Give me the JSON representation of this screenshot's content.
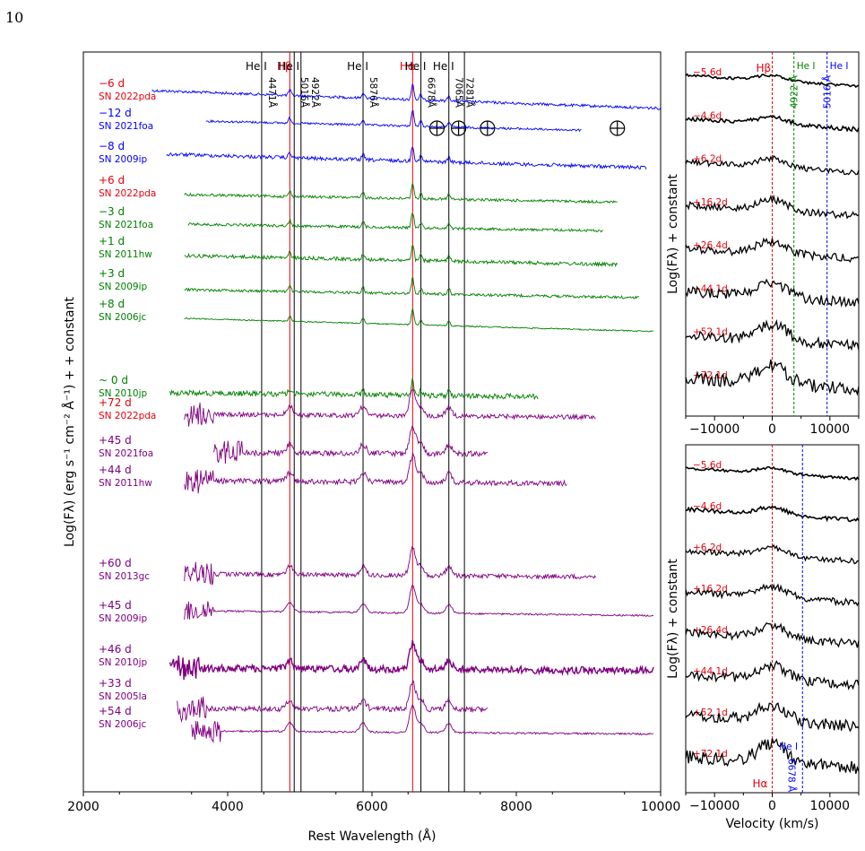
{
  "page_number": "10",
  "chart_data": [
    {
      "id": "main",
      "type": "line",
      "xlabel": "Rest Wavelength (Å)",
      "ylabel": "Log(Fλ) (erg s⁻¹ cm⁻² Å⁻¹) + + constant",
      "xlim": [
        2000,
        10000
      ],
      "xticks": [
        "2000",
        "4000",
        "6000",
        "8000",
        "10000"
      ],
      "line_markers": [
        {
          "name": "He I",
          "sub": "4471Å",
          "x": 4471,
          "color": "#000000"
        },
        {
          "name": "Hβ",
          "sub": "",
          "x": 4861,
          "color": "#e8000b"
        },
        {
          "name": "He I",
          "sub": "5016Å 4922Å",
          "x": 4922,
          "color": "#000000"
        },
        {
          "name": "",
          "sub": "",
          "x": 5016,
          "color": "#000000"
        },
        {
          "name": "He I",
          "sub": "5876Å",
          "x": 5876,
          "color": "#000000"
        },
        {
          "name": "Hα",
          "sub": "",
          "x": 6563,
          "color": "#e8000b"
        },
        {
          "name": "He I",
          "sub": "6678Å",
          "x": 6678,
          "color": "#000000"
        },
        {
          "name": "He I",
          "sub": "7065Å 7281Å",
          "x": 7065,
          "color": "#000000"
        },
        {
          "name": "",
          "sub": "",
          "x": 7281,
          "color": "#000000"
        }
      ],
      "telluric_marks": [
        6900,
        7200,
        7600,
        9400
      ],
      "series": [
        {
          "epoch": "−6 d",
          "name": "SN 2022pda",
          "label_color": "#e8000b",
          "color": "#0000ff",
          "x_range": [
            2950,
            10000
          ],
          "offset": 0
        },
        {
          "epoch": "−12 d",
          "name": "SN 2021foa",
          "label_color": "#0000ff",
          "color": "#0000ff",
          "x_range": [
            3700,
            8900
          ],
          "offset": 1
        },
        {
          "epoch": "−8 d",
          "name": "SN 2009ip",
          "label_color": "#0000ff",
          "color": "#0000ff",
          "x_range": [
            3150,
            9800
          ],
          "offset": 2
        },
        {
          "epoch": "+6 d",
          "name": "SN 2022pda",
          "label_color": "#e8000b",
          "color": "#008000",
          "x_range": [
            3400,
            9400
          ],
          "offset": 3
        },
        {
          "epoch": "−3 d",
          "name": "SN 2021foa",
          "label_color": "#008000",
          "color": "#008000",
          "x_range": [
            3450,
            9200
          ],
          "offset": 4
        },
        {
          "epoch": "+1 d",
          "name": "SN 2011hw",
          "label_color": "#008000",
          "color": "#008000",
          "x_range": [
            3400,
            9400
          ],
          "offset": 5
        },
        {
          "epoch": "+3 d",
          "name": "SN 2009ip",
          "label_color": "#008000",
          "color": "#008000",
          "x_range": [
            3400,
            9700
          ],
          "offset": 6
        },
        {
          "epoch": "+8 d",
          "name": "SN 2006jc",
          "label_color": "#008000",
          "color": "#008000",
          "x_range": [
            3400,
            9900
          ],
          "offset": 7
        },
        {
          "epoch": "~ 0 d",
          "name": "SN 2010jp",
          "label_color": "#008000",
          "color": "#008000",
          "x_range": [
            3200,
            8300
          ],
          "offset": 8
        },
        {
          "epoch": "+72 d",
          "name": "SN 2022pda",
          "label_color": "#e8000b",
          "color": "#800080",
          "x_range": [
            3400,
            9100
          ],
          "offset": 9
        },
        {
          "epoch": "+45 d",
          "name": "SN 2021foa",
          "label_color": "#800080",
          "color": "#800080",
          "x_range": [
            3800,
            7600
          ],
          "offset": 10
        },
        {
          "epoch": "+44 d",
          "name": "SN 2011hw",
          "label_color": "#800080",
          "color": "#800080",
          "x_range": [
            3400,
            8700
          ],
          "offset": 11
        },
        {
          "epoch": "+60 d",
          "name": "SN 2013gc",
          "label_color": "#800080",
          "color": "#800080",
          "x_range": [
            3400,
            9100
          ],
          "offset": 12
        },
        {
          "epoch": "+45 d",
          "name": "SN 2009ip",
          "label_color": "#800080",
          "color": "#800080",
          "x_range": [
            3400,
            9900
          ],
          "offset": 13
        },
        {
          "epoch": "+46 d",
          "name": "SN 2010jp",
          "label_color": "#800080",
          "color": "#800080",
          "x_range": [
            3200,
            9900
          ],
          "offset": 14
        },
        {
          "epoch": "+33 d",
          "name": "SN 2005la",
          "label_color": "#800080",
          "color": "#800080",
          "x_range": [
            3300,
            7600
          ],
          "offset": 15
        },
        {
          "epoch": "+54 d",
          "name": "SN 2006jc",
          "label_color": "#800080",
          "color": "#800080",
          "x_range": [
            3500,
            9900
          ],
          "offset": 16
        }
      ]
    },
    {
      "id": "hbeta",
      "type": "line",
      "xlabel": "",
      "ylabel": "Log(Fλ) + constant",
      "xlim": [
        -15000,
        15000
      ],
      "xticks": [
        "−10000",
        "0",
        "10000"
      ],
      "line_markers": [
        {
          "name": "Hβ",
          "x": 0,
          "color": "#e8000b"
        },
        {
          "name": "He I",
          "sub": "4922 Å",
          "x": 3763,
          "color": "#008000"
        },
        {
          "name": "He I",
          "sub": "5016 Å",
          "x": 9510,
          "color": "#0000ff"
        }
      ],
      "series": [
        {
          "epoch": "−5.6d"
        },
        {
          "epoch": "−4.6d"
        },
        {
          "epoch": "+6.2d"
        },
        {
          "epoch": "+16.2d"
        },
        {
          "epoch": "+26.4d"
        },
        {
          "epoch": "+44.1d"
        },
        {
          "epoch": "+52.1d"
        },
        {
          "epoch": "+72.1d"
        }
      ]
    },
    {
      "id": "halpha",
      "type": "line",
      "xlabel": "Velocity (km/s)",
      "ylabel": "Log(Fλ) + constant",
      "xlim": [
        -15000,
        15000
      ],
      "xticks": [
        "−10000",
        "0",
        "10000"
      ],
      "line_markers": [
        {
          "name": "Hα",
          "x": 0,
          "color": "#e8000b"
        },
        {
          "name": "He I",
          "sub": "6678 Å",
          "x": 5250,
          "color": "#0000ff"
        }
      ],
      "series": [
        {
          "epoch": "−5.6d"
        },
        {
          "epoch": "−4.6d"
        },
        {
          "epoch": "+6.2d"
        },
        {
          "epoch": "+16.2d"
        },
        {
          "epoch": "+26.4d"
        },
        {
          "epoch": "+44.1d"
        },
        {
          "epoch": "+52.1d"
        },
        {
          "epoch": "+72.1d"
        }
      ]
    }
  ]
}
